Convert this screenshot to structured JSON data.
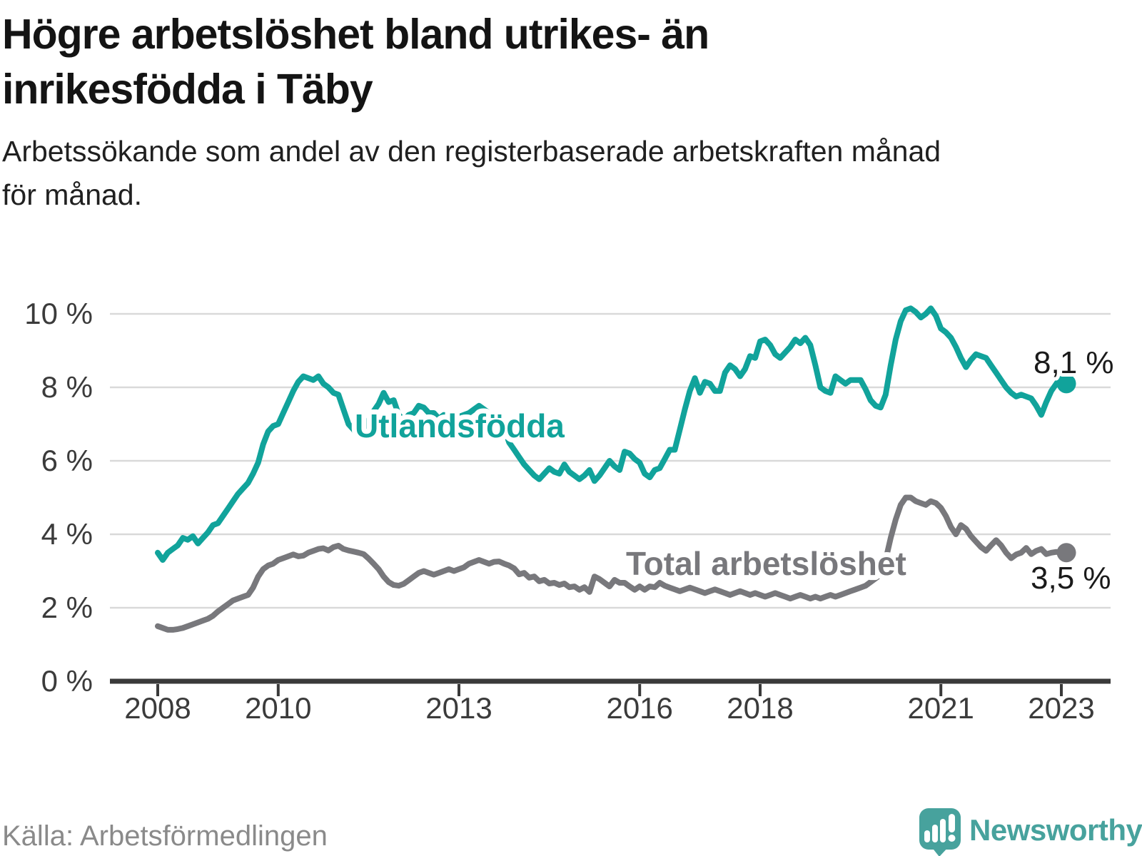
{
  "header": {
    "title_lines": [
      "Högre arbetslöshet bland utrikes- än",
      "inrikesfödda i Täby"
    ],
    "subtitle_lines": [
      "Arbetssökande som andel av den registerbaserade arbetskraften månad",
      "för månad."
    ]
  },
  "footer": {
    "source": "Källa: Arbetsförmedlingen",
    "brand": "Newsworthy",
    "brand_color": "#47A29D"
  },
  "chart_data": {
    "type": "line",
    "title": "Högre arbetslöshet bland utrikes- än inrikesfödda i Täby",
    "xlabel": "",
    "ylabel": "Arbetssökande som andel av den registerbaserade arbetskraften",
    "unit": "%",
    "x_start_year": 2008,
    "x_step_months": 1,
    "x_ticks": [
      2008,
      2010,
      2013,
      2016,
      2018,
      2021,
      2023
    ],
    "y_ticks": [
      0,
      2,
      4,
      6,
      8,
      10
    ],
    "y_tick_suffix": " %",
    "ylim": [
      0,
      10.5
    ],
    "grid": true,
    "grid_color": "#d9d9d9",
    "axis_color": "#3a3a3a",
    "legend_position": "inline-labels",
    "series": [
      {
        "id": "utlandsfodda",
        "name": "Utlandsfödda",
        "color": "#11A39B",
        "end_label": "8,1 %",
        "end_value": 8.1,
        "values": [
          3.5,
          3.3,
          3.5,
          3.6,
          3.7,
          3.9,
          3.85,
          3.95,
          3.75,
          3.9,
          4.05,
          4.25,
          4.3,
          4.5,
          4.7,
          4.9,
          5.1,
          5.25,
          5.4,
          5.65,
          5.95,
          6.45,
          6.8,
          6.95,
          7.0,
          7.3,
          7.6,
          7.9,
          8.15,
          8.3,
          8.25,
          8.2,
          8.3,
          8.1,
          8.0,
          7.85,
          7.8,
          7.4,
          7.0,
          6.85,
          6.65,
          6.75,
          7.1,
          7.35,
          7.55,
          7.85,
          7.6,
          7.65,
          7.25,
          7.1,
          7.25,
          7.3,
          7.5,
          7.45,
          7.3,
          7.3,
          7.15,
          7.25,
          7.2,
          7.15,
          7.2,
          7.25,
          7.3,
          7.4,
          7.5,
          7.4,
          7.3,
          7.2,
          7.1,
          6.9,
          6.5,
          6.3,
          6.1,
          5.9,
          5.75,
          5.6,
          5.5,
          5.65,
          5.8,
          5.7,
          5.65,
          5.9,
          5.7,
          5.6,
          5.5,
          5.6,
          5.75,
          5.45,
          5.6,
          5.8,
          6.0,
          5.85,
          5.75,
          6.25,
          6.2,
          6.05,
          5.95,
          5.65,
          5.55,
          5.75,
          5.8,
          6.05,
          6.3,
          6.3,
          6.85,
          7.4,
          7.9,
          8.25,
          7.85,
          8.15,
          8.1,
          7.9,
          7.9,
          8.4,
          8.6,
          8.5,
          8.3,
          8.5,
          8.85,
          8.8,
          9.25,
          9.3,
          9.15,
          8.9,
          8.8,
          8.95,
          9.1,
          9.3,
          9.2,
          9.35,
          9.15,
          8.6,
          8.0,
          7.9,
          7.85,
          8.3,
          8.2,
          8.1,
          8.2,
          8.2,
          8.2,
          7.95,
          7.65,
          7.5,
          7.45,
          7.8,
          8.6,
          9.3,
          9.8,
          10.1,
          10.15,
          10.05,
          9.9,
          10.0,
          10.15,
          9.95,
          9.6,
          9.5,
          9.35,
          9.1,
          8.8,
          8.55,
          8.75,
          8.9,
          8.85,
          8.8,
          8.6,
          8.4,
          8.2,
          8.0,
          7.85,
          7.75,
          7.8,
          7.75,
          7.7,
          7.5,
          7.25,
          7.6,
          7.9,
          8.1,
          8.3,
          8.1
        ]
      },
      {
        "id": "total",
        "name": "Total arbetslöshet",
        "color": "#78787C",
        "end_label": "3,5 %",
        "end_value": 3.5,
        "values": [
          1.5,
          1.45,
          1.4,
          1.4,
          1.42,
          1.45,
          1.5,
          1.55,
          1.6,
          1.65,
          1.7,
          1.78,
          1.9,
          2.0,
          2.1,
          2.2,
          2.25,
          2.3,
          2.35,
          2.55,
          2.85,
          3.05,
          3.15,
          3.2,
          3.3,
          3.35,
          3.4,
          3.45,
          3.4,
          3.42,
          3.5,
          3.55,
          3.6,
          3.62,
          3.56,
          3.65,
          3.69,
          3.6,
          3.56,
          3.53,
          3.5,
          3.46,
          3.34,
          3.2,
          3.05,
          2.85,
          2.7,
          2.62,
          2.6,
          2.65,
          2.75,
          2.85,
          2.95,
          3.0,
          2.95,
          2.9,
          2.95,
          3.0,
          3.05,
          3.0,
          3.05,
          3.1,
          3.2,
          3.25,
          3.3,
          3.25,
          3.2,
          3.25,
          3.26,
          3.2,
          3.15,
          3.07,
          2.91,
          2.95,
          2.82,
          2.85,
          2.72,
          2.76,
          2.66,
          2.68,
          2.62,
          2.66,
          2.56,
          2.58,
          2.49,
          2.56,
          2.43,
          2.85,
          2.78,
          2.68,
          2.58,
          2.76,
          2.68,
          2.68,
          2.58,
          2.49,
          2.58,
          2.49,
          2.58,
          2.56,
          2.68,
          2.6,
          2.55,
          2.5,
          2.45,
          2.5,
          2.55,
          2.5,
          2.45,
          2.4,
          2.45,
          2.5,
          2.45,
          2.4,
          2.35,
          2.4,
          2.45,
          2.4,
          2.35,
          2.4,
          2.35,
          2.3,
          2.35,
          2.4,
          2.35,
          2.3,
          2.25,
          2.3,
          2.35,
          2.3,
          2.25,
          2.3,
          2.25,
          2.3,
          2.35,
          2.3,
          2.35,
          2.4,
          2.45,
          2.5,
          2.55,
          2.6,
          2.7,
          2.8,
          2.9,
          3.3,
          3.9,
          4.4,
          4.8,
          5.0,
          5.0,
          4.9,
          4.85,
          4.8,
          4.9,
          4.85,
          4.72,
          4.5,
          4.2,
          4.0,
          4.25,
          4.15,
          3.95,
          3.8,
          3.65,
          3.55,
          3.7,
          3.84,
          3.7,
          3.5,
          3.35,
          3.45,
          3.5,
          3.63,
          3.46,
          3.55,
          3.6,
          3.46,
          3.5,
          3.52,
          3.5,
          3.5
        ]
      }
    ]
  }
}
